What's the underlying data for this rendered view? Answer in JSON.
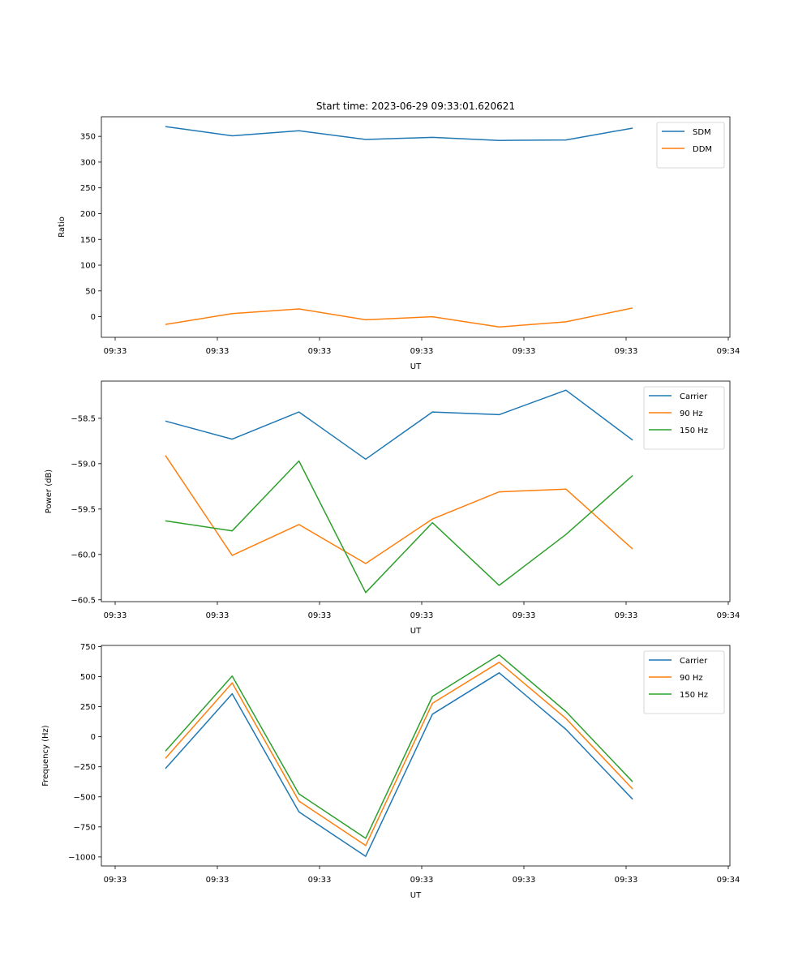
{
  "chart_data": {
    "title": "Start time: 2023-06-29 09:33:01.620621",
    "colors": {
      "blue": "#1f77b4",
      "orange": "#ff7f0e",
      "green": "#2ca02c"
    },
    "x_tick_labels": [
      "09:33",
      "09:33",
      "09:33",
      "09:33",
      "09:33",
      "09:33",
      "09:33"
    ],
    "panels": [
      {
        "type": "line",
        "xlabel": "UT",
        "ylabel": "Ratio",
        "ylim": [
          -40,
          388
        ],
        "yticks": [
          0,
          50,
          100,
          150,
          200,
          250,
          300,
          350
        ],
        "ytick_labels": [
          "0",
          "50",
          "100",
          "150",
          "200",
          "250",
          "300",
          "350"
        ],
        "legend": "top-right",
        "series": [
          {
            "name": "SDM",
            "color": "#1f77b4",
            "values": [
              369,
              351,
              361,
              344,
              348,
              342,
              343,
              366
            ]
          },
          {
            "name": "DDM",
            "color": "#ff7f0e",
            "values": [
              -15,
              6,
              15,
              -6,
              0,
              -20,
              -10,
              17
            ]
          }
        ]
      },
      {
        "type": "line",
        "xlabel": "UT",
        "ylabel": "Power (dB)",
        "ylim": [
          -60.52,
          -58.09
        ],
        "yticks": [
          -60.5,
          -60.0,
          -59.5,
          -59.0,
          -58.5
        ],
        "ytick_labels": [
          "−60.5",
          "−60.0",
          "−59.5",
          "−59.0",
          "−58.5"
        ],
        "legend": "top-right",
        "series": [
          {
            "name": "Carrier",
            "color": "#1f77b4",
            "values": [
              -58.53,
              -58.73,
              -58.43,
              -58.95,
              -58.43,
              -58.46,
              -58.19,
              -58.74
            ]
          },
          {
            "name": "90 Hz",
            "color": "#ff7f0e",
            "values": [
              -58.91,
              -60.01,
              -59.67,
              -60.1,
              -59.61,
              -59.31,
              -59.28,
              -59.94
            ]
          },
          {
            "name": "150 Hz",
            "color": "#2ca02c",
            "values": [
              -59.63,
              -59.74,
              -58.97,
              -60.42,
              -59.65,
              -60.34,
              -59.78,
              -59.13
            ]
          }
        ]
      },
      {
        "type": "line",
        "xlabel": "UT",
        "ylabel": "Frequency (Hz)",
        "ylim": [
          -1075,
          760
        ],
        "yticks": [
          -1000,
          -750,
          -500,
          -250,
          0,
          250,
          500,
          750
        ],
        "ytick_labels": [
          "−1000",
          "−750",
          "−500",
          "−250",
          "0",
          "250",
          "500",
          "750"
        ],
        "legend": "top-right",
        "series": [
          {
            "name": "Carrier",
            "color": "#1f77b4",
            "values": [
              -265,
              358,
              -625,
              -995,
              188,
              532,
              62,
              -520
            ]
          },
          {
            "name": "90 Hz",
            "color": "#ff7f0e",
            "values": [
              -180,
              448,
              -535,
              -905,
              278,
              620,
              152,
              -435
            ]
          },
          {
            "name": "150 Hz",
            "color": "#2ca02c",
            "values": [
              -120,
              505,
              -475,
              -845,
              335,
              682,
              210,
              -375
            ]
          }
        ]
      }
    ]
  }
}
